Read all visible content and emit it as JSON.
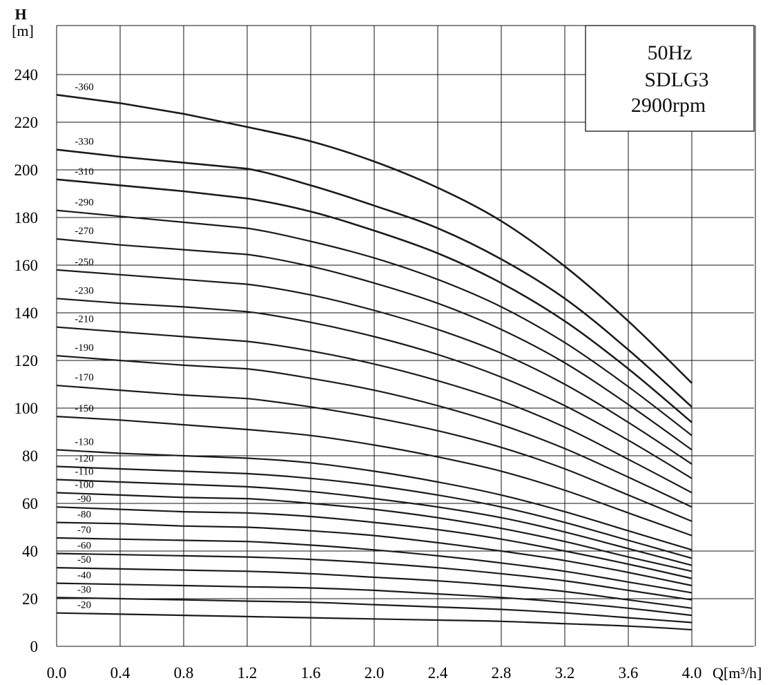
{
  "chart_data": {
    "type": "line",
    "y_axis_title": "H",
    "y_axis_unit": "[m]",
    "x_axis_label": "Q[m³/h]",
    "xlim": [
      0,
      4.4
    ],
    "ylim": [
      0,
      250
    ],
    "x_tick_labels": [
      "0.0",
      "0.4",
      "0.8",
      "1.2",
      "1.6",
      "2.0",
      "2.4",
      "2.8",
      "3.2",
      "3.6",
      "4.0"
    ],
    "y_tick_labels": [
      "0",
      "20",
      "40",
      "60",
      "80",
      "100",
      "120",
      "140",
      "160",
      "180",
      "200",
      "220",
      "240"
    ],
    "grid": true,
    "info_box": {
      "line1": "50Hz",
      "line2": "SDLG3",
      "line3": "2900rpm"
    },
    "x": [
      0,
      0.4,
      0.8,
      1.2,
      1.6,
      2.0,
      2.4,
      2.8,
      3.2,
      3.6,
      4.0
    ],
    "series": [
      {
        "name": "-360",
        "values": [
          231.5,
          228.0,
          223.5,
          218.0,
          212.0,
          203.5,
          192.5,
          178.5,
          159.5,
          136.5,
          110.5
        ]
      },
      {
        "name": "-330",
        "values": [
          208.5,
          205.5,
          203.0,
          200.5,
          193.5,
          185.0,
          175.5,
          162.5,
          146.0,
          124.5,
          100.5
        ]
      },
      {
        "name": "-310",
        "values": [
          196.0,
          193.5,
          191.0,
          188.0,
          182.5,
          174.5,
          165.0,
          152.5,
          136.5,
          116.5,
          94.0
        ]
      },
      {
        "name": "-290",
        "values": [
          183.0,
          180.5,
          178.0,
          175.5,
          170.0,
          163.0,
          154.0,
          142.5,
          127.5,
          109.0,
          88.5
        ]
      },
      {
        "name": "-270",
        "values": [
          171.0,
          168.5,
          166.5,
          164.5,
          159.5,
          152.5,
          144.0,
          133.0,
          119.0,
          101.5,
          82.5
        ]
      },
      {
        "name": "-250",
        "values": [
          158.0,
          156.0,
          154.0,
          152.0,
          147.5,
          141.0,
          133.0,
          123.0,
          110.0,
          94.0,
          76.5
        ]
      },
      {
        "name": "-230",
        "values": [
          146.0,
          144.0,
          142.5,
          140.5,
          136.0,
          130.0,
          122.5,
          113.0,
          101.0,
          86.5,
          70.5
        ]
      },
      {
        "name": "-210",
        "values": [
          134.0,
          132.0,
          130.0,
          128.0,
          124.0,
          118.5,
          111.5,
          103.0,
          92.0,
          78.5,
          64.5
        ]
      },
      {
        "name": "-190",
        "values": [
          122.0,
          120.0,
          118.0,
          116.5,
          112.5,
          107.5,
          101.0,
          93.0,
          83.0,
          71.0,
          58.5
        ]
      },
      {
        "name": "-170",
        "values": [
          109.5,
          107.5,
          105.5,
          104.0,
          100.5,
          96.0,
          90.5,
          83.5,
          74.5,
          63.5,
          52.5
        ]
      },
      {
        "name": "-150",
        "values": [
          96.5,
          95.0,
          93.0,
          91.0,
          88.5,
          84.5,
          79.5,
          73.5,
          65.5,
          56.0,
          46.5
        ]
      },
      {
        "name": "-130",
        "values": [
          82.5,
          81.0,
          80.0,
          79.0,
          77.0,
          73.5,
          69.0,
          63.5,
          56.5,
          48.5,
          40.5
        ]
      },
      {
        "name": "-120",
        "values": [
          75.5,
          74.5,
          73.5,
          72.5,
          70.5,
          67.5,
          63.5,
          58.5,
          52.0,
          44.5,
          37.0
        ]
      },
      {
        "name": "-110",
        "values": [
          70.0,
          69.0,
          68.0,
          67.0,
          65.0,
          62.0,
          58.5,
          54.0,
          48.0,
          41.0,
          34.0
        ]
      },
      {
        "name": "-100",
        "values": [
          64.5,
          63.5,
          62.5,
          62.0,
          60.0,
          57.5,
          54.0,
          49.5,
          44.0,
          37.5,
          31.5
        ]
      },
      {
        "name": "-90",
        "values": [
          58.5,
          57.5,
          56.5,
          56.0,
          54.5,
          52.0,
          49.0,
          45.0,
          40.0,
          34.5,
          28.5
        ]
      },
      {
        "name": "-80",
        "values": [
          52.0,
          51.5,
          50.5,
          50.0,
          48.5,
          46.5,
          43.5,
          40.0,
          36.0,
          31.0,
          25.5
        ]
      },
      {
        "name": "-70",
        "values": [
          45.5,
          45.0,
          44.5,
          44.0,
          42.5,
          40.5,
          38.0,
          35.0,
          31.5,
          27.0,
          22.5
        ]
      },
      {
        "name": "-60",
        "values": [
          39.0,
          38.5,
          38.0,
          37.5,
          36.5,
          35.0,
          33.0,
          30.5,
          27.5,
          23.5,
          19.5
        ]
      },
      {
        "name": "-50",
        "values": [
          33.0,
          32.5,
          32.0,
          31.5,
          30.5,
          29.0,
          27.5,
          25.5,
          23.0,
          19.5,
          16.0
        ]
      },
      {
        "name": "-40",
        "values": [
          26.5,
          26.0,
          25.5,
          25.0,
          24.5,
          23.5,
          22.0,
          20.5,
          18.5,
          16.0,
          13.0
        ]
      },
      {
        "name": "-30",
        "values": [
          20.5,
          20.0,
          19.5,
          19.0,
          18.5,
          17.5,
          16.5,
          15.5,
          14.0,
          12.0,
          10.0
        ]
      },
      {
        "name": "-20",
        "values": [
          14.0,
          13.5,
          13.0,
          12.5,
          12.0,
          11.5,
          11.0,
          10.5,
          9.5,
          8.5,
          7.0
        ]
      }
    ]
  }
}
